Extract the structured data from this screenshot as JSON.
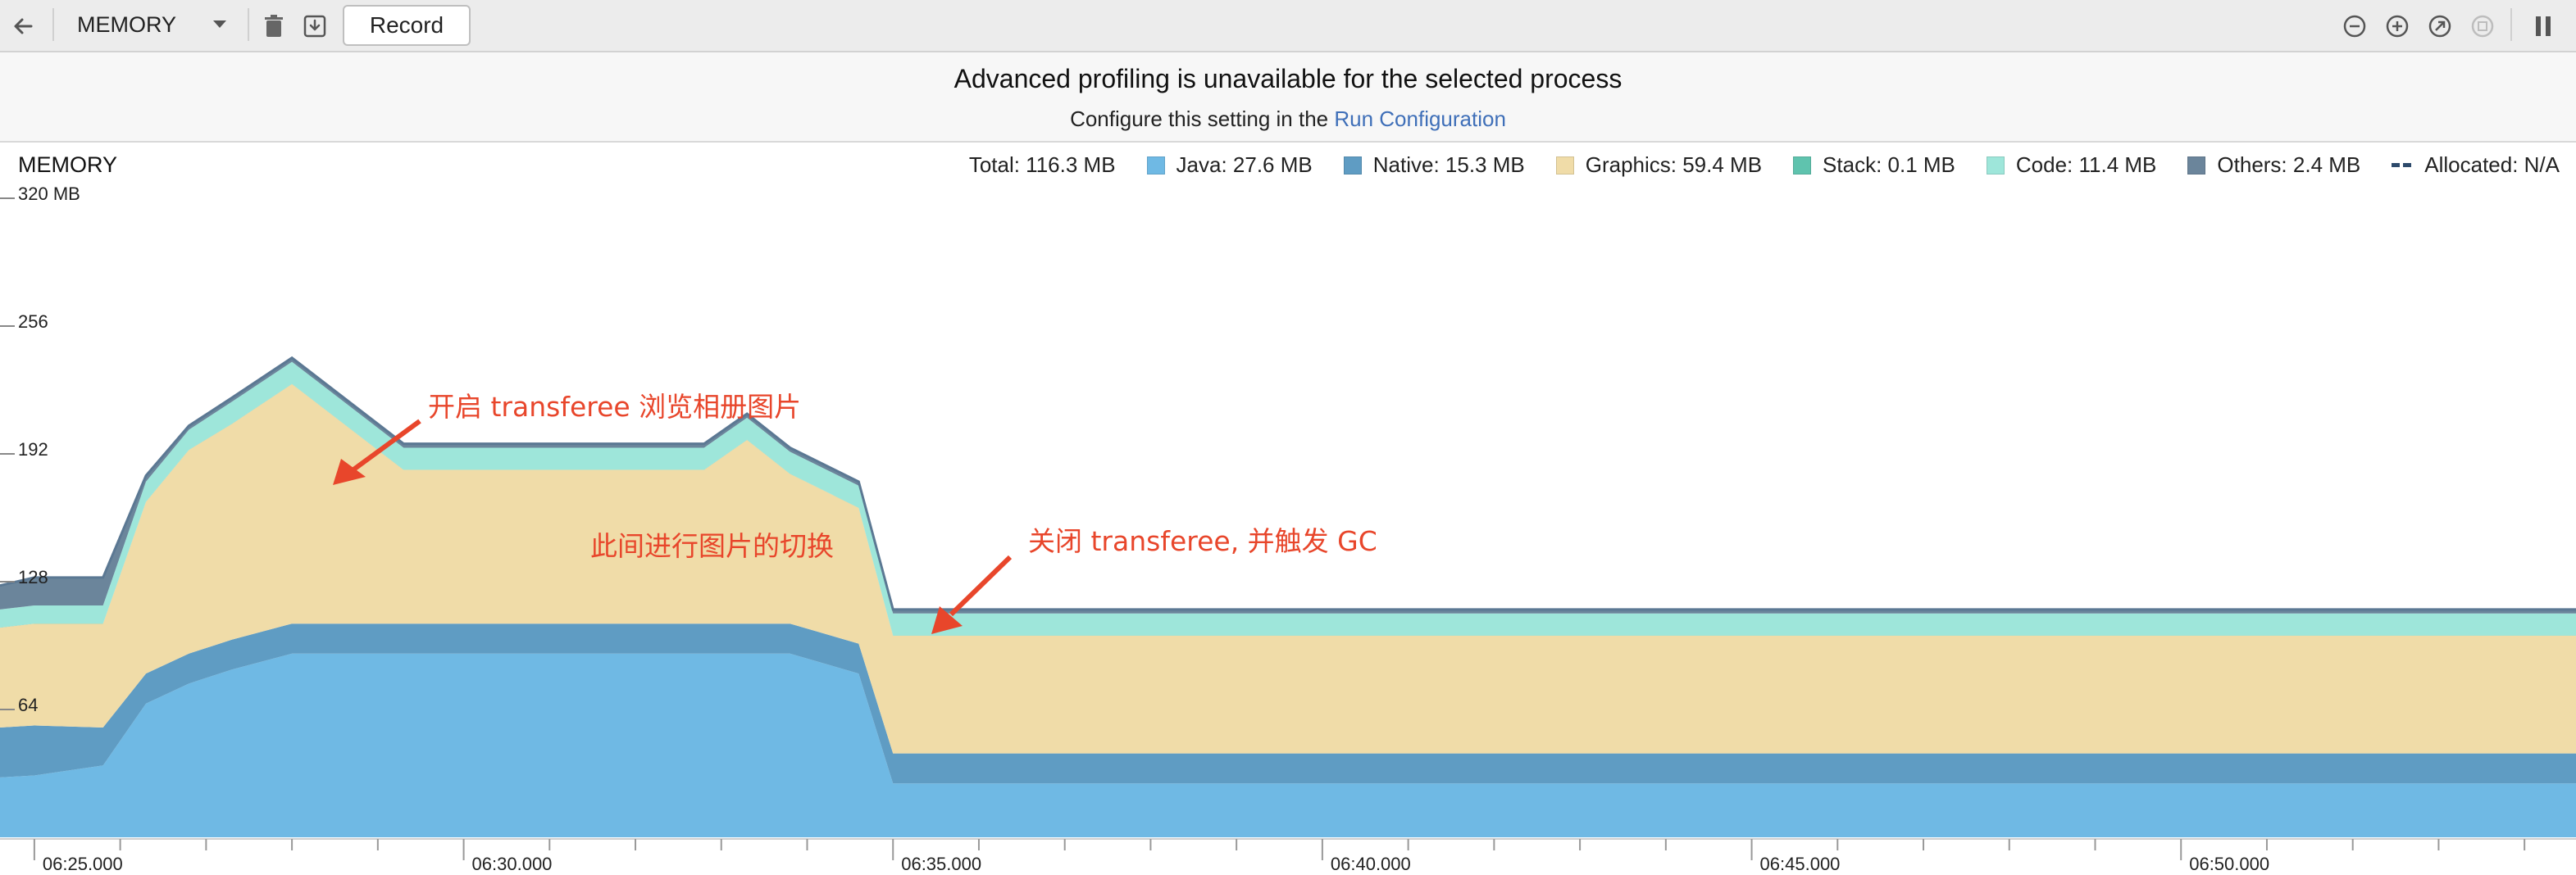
{
  "toolbar": {
    "profiler": "MEMORY",
    "record_label": "Record",
    "icons": [
      "back-arrow-icon",
      "dropdown-caret-icon",
      "trash-icon",
      "save-heap-icon",
      "zoom-out-icon",
      "zoom-in-icon",
      "reset-zoom-icon",
      "go-live-icon",
      "pause-icon"
    ]
  },
  "banner": {
    "title": "Advanced profiling is unavailable for the selected process",
    "sub_prefix": "Configure this setting in the ",
    "link": "Run Configuration"
  },
  "chart_title": "MEMORY",
  "legend": {
    "total": "Total: 116.3 MB",
    "items": [
      {
        "label": "Java: 27.6 MB",
        "color": "#6fb9e4"
      },
      {
        "label": "Native: 15.3 MB",
        "color": "#5f9cc3"
      },
      {
        "label": "Graphics: 59.4 MB",
        "color": "#f0dca8"
      },
      {
        "label": "Stack: 0.1 MB",
        "color": "#5fc3ae"
      },
      {
        "label": "Code: 11.4 MB",
        "color": "#9ee6da"
      },
      {
        "label": "Others: 2.4 MB",
        "color": "#6b859b"
      }
    ],
    "allocated": "Allocated: N/A"
  },
  "annotations": [
    "开启 transferee 浏览相册图片",
    "此间进行图片的切换",
    "关闭 transferee, 并触发 GC"
  ],
  "chart_data": {
    "type": "area",
    "stacked": true,
    "ylim": [
      0,
      320
    ],
    "yticks": [
      "320 MB",
      "256",
      "192",
      "128",
      "64"
    ],
    "ytick_values": [
      320,
      256,
      192,
      128,
      64
    ],
    "xticks": [
      "06:25.000",
      "06:30.000",
      "06:35.000",
      "06:40.000",
      "06:45.000",
      "06:50.000"
    ],
    "xtick_minutes": [
      25,
      30,
      35,
      40,
      45,
      50
    ],
    "xlim": [
      24.6,
      54.6
    ],
    "x": [
      24.6,
      25.0,
      25.8,
      26.3,
      26.8,
      27.3,
      28.0,
      29.3,
      31.5,
      32.8,
      33.3,
      33.8,
      34.6,
      35.0,
      40.0,
      45.0,
      54.6
    ],
    "series": [
      {
        "name": "Java",
        "color": "#6fb9e4",
        "values": [
          30,
          31,
          36,
          67,
          77,
          84,
          92,
          92,
          92,
          92,
          92,
          92,
          82,
          27,
          27,
          27,
          27
        ]
      },
      {
        "name": "Native",
        "color": "#5f9cc3",
        "values": [
          25,
          25,
          19,
          15,
          15,
          15,
          15,
          15,
          15,
          15,
          15,
          15,
          15,
          15,
          15,
          15,
          15
        ]
      },
      {
        "name": "Graphics",
        "color": "#f0dca8",
        "values": [
          50,
          51,
          52,
          86,
          102,
          108,
          120,
          77,
          77,
          77,
          92,
          75,
          68,
          59,
          59,
          59,
          59
        ]
      },
      {
        "name": "Stack",
        "color": "#5fc3ae",
        "values": [
          0.1,
          0.1,
          0.1,
          0.1,
          0.1,
          0.1,
          0.1,
          0.1,
          0.1,
          0.1,
          0.1,
          0.1,
          0.1,
          0.1,
          0.1,
          0.1,
          0.1
        ]
      },
      {
        "name": "Code",
        "color": "#9ee6da",
        "values": [
          9,
          9,
          9,
          10,
          10,
          11,
          11,
          11,
          11,
          11,
          11,
          11,
          11,
          11,
          11,
          11,
          11
        ]
      },
      {
        "name": "Others",
        "color": "#6b859b",
        "values": [
          12,
          14,
          14,
          3,
          2,
          2,
          2,
          2,
          2,
          2,
          2,
          2,
          2,
          2,
          2,
          2,
          2
        ]
      }
    ]
  }
}
